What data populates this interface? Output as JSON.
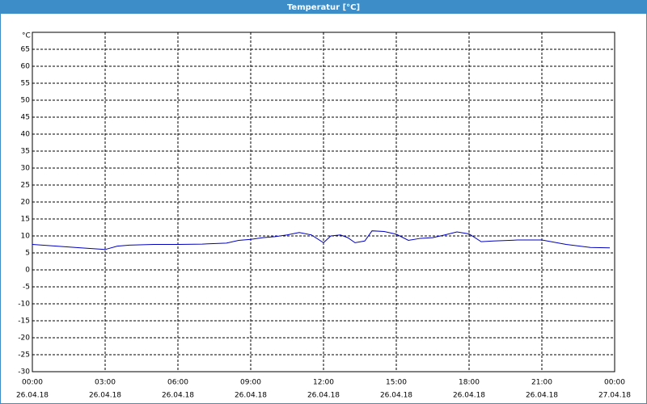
{
  "chart_data": {
    "type": "line",
    "title": "Temperatur [°C]",
    "y_label": "°C",
    "x": [
      0,
      1,
      2,
      3,
      3.5,
      4,
      5,
      6,
      7,
      8,
      8.5,
      9,
      9.5,
      10,
      10.5,
      11,
      11.5,
      12,
      12.3,
      12.7,
      13,
      13.3,
      13.7,
      14,
      14.5,
      15,
      15.5,
      16,
      16.5,
      17,
      17.5,
      18,
      18.5,
      19,
      20,
      21,
      22,
      23,
      23.8
    ],
    "series": [
      {
        "name": "Temperatur",
        "color": "#0000c0",
        "values": [
          7.5,
          7.0,
          6.5,
          6.0,
          7.0,
          7.3,
          7.5,
          7.5,
          7.6,
          7.9,
          8.7,
          9.0,
          9.5,
          9.8,
          10.3,
          11.0,
          10.3,
          8.0,
          10.0,
          10.3,
          9.5,
          8.0,
          8.5,
          11.5,
          11.3,
          10.5,
          8.7,
          9.3,
          9.5,
          10.3,
          11.2,
          10.6,
          8.3,
          8.5,
          8.8,
          8.8,
          7.5,
          6.6,
          6.5
        ]
      }
    ],
    "xlim": [
      0,
      24
    ],
    "ylim": [
      -30,
      70
    ],
    "xticks": [
      {
        "value": 0,
        "label": "00:00"
      },
      {
        "value": 3,
        "label": "03:00"
      },
      {
        "value": 6,
        "label": "06:00"
      },
      {
        "value": 9,
        "label": "09:00"
      },
      {
        "value": 12,
        "label": "12:00"
      },
      {
        "value": 15,
        "label": "15:00"
      },
      {
        "value": 18,
        "label": "18:00"
      },
      {
        "value": 21,
        "label": "21:00"
      },
      {
        "value": 24,
        "label": "00:00"
      }
    ],
    "xtick_dates": [
      "26.04.18",
      "26.04.18",
      "26.04.18",
      "26.04.18",
      "26.04.18",
      "26.04.18",
      "26.04.18",
      "26.04.18",
      "27.04.18"
    ],
    "yticks": [
      -30,
      -25,
      -20,
      -15,
      -10,
      -5,
      0,
      5,
      10,
      15,
      20,
      25,
      30,
      35,
      40,
      45,
      50,
      55,
      60,
      65
    ],
    "grid": true
  }
}
